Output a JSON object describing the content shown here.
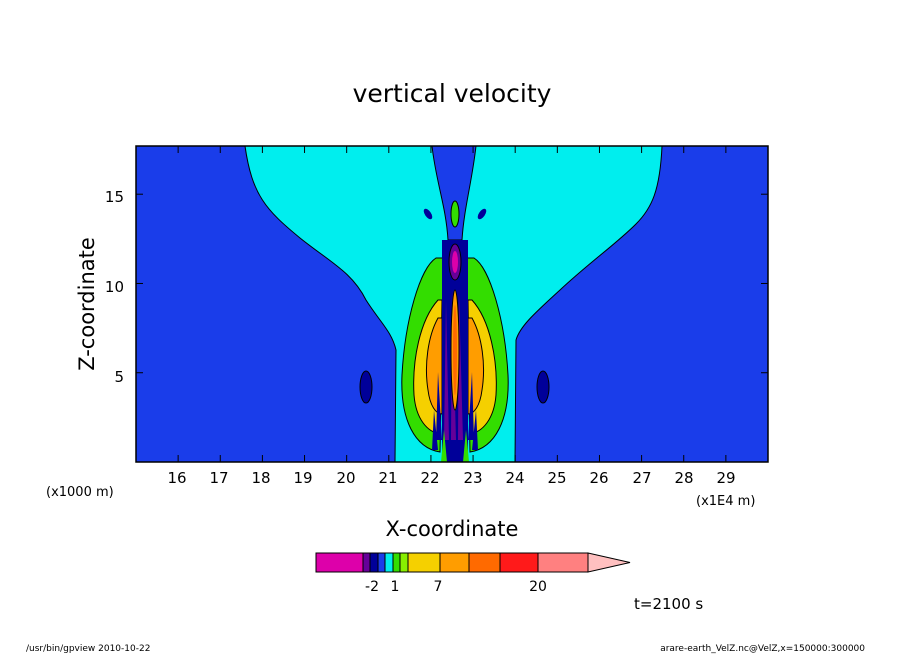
{
  "chart_data": {
    "type": "heatmap",
    "title": "vertical velocity",
    "xlabel": "X-coordinate",
    "ylabel": "Z-coordinate",
    "x_scale_note": "(x1E4 m)",
    "z_scale_note": "(x1000 m)",
    "xlim": [
      15.0,
      30.0
    ],
    "ylim": [
      0.0,
      17.7
    ],
    "x_ticks": [
      "16",
      "17",
      "18",
      "19",
      "20",
      "21",
      "22",
      "23",
      "24",
      "25",
      "26",
      "27",
      "28",
      "29"
    ],
    "y_ticks": [
      "5",
      "10",
      "15"
    ],
    "colorbar_labels": [
      "-2",
      "1",
      "7",
      "20"
    ],
    "time_label": "t=2100 s",
    "colors": {
      "background_field": "#1a3dea",
      "updraft_envelope": "#00eeee",
      "green": "#33dd00",
      "yellow": "#f5d000",
      "orange": "#ff9d00",
      "dark_orange": "#ff6a00",
      "dark_blue": "#000099",
      "purple": "#660099",
      "magenta": "#dd00aa",
      "pink": "#ff8080",
      "light_pink": "#ffc0c0",
      "red": "#ff1a1a"
    }
  },
  "footer": {
    "left": "/usr/bin/gpview   2010-10-22",
    "right": "arare-earth_VelZ.nc@VelZ,x=150000:300000"
  }
}
